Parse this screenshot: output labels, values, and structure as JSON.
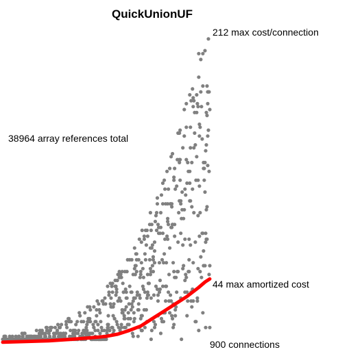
{
  "chart_data": {
    "type": "scatter",
    "title": "QuickUnionUF",
    "annotations": {
      "max_cost": "212 max cost/connection",
      "total_refs": "38964 array references total",
      "amortized": "44 max amortized cost",
      "connections": "900 connections"
    },
    "num_connections": 900,
    "max_cost": 212,
    "max_amortized_cost": 44,
    "total_array_references": 38964,
    "xlim": [
      0,
      900
    ],
    "ylim": [
      0,
      212
    ],
    "series": [
      {
        "kind": "cost-per-connection",
        "color": "#808080"
      },
      {
        "kind": "amortized-cost",
        "color": "#ff0000",
        "x": [
          0,
          100,
          200,
          300,
          380,
          450,
          500,
          550,
          600,
          650,
          700,
          750,
          800,
          850,
          880,
          900
        ],
        "y": [
          1,
          1.5,
          2,
          3,
          4,
          5,
          6.5,
          9,
          12,
          17,
          22,
          27,
          32,
          38,
          42,
          44
        ]
      }
    ],
    "grid": false,
    "legend": "none"
  }
}
